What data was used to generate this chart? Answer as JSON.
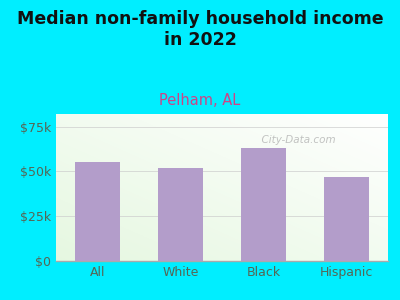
{
  "title": "Median non-family household income\nin 2022",
  "subtitle": "Pelham, AL",
  "categories": [
    "All",
    "White",
    "Black",
    "Hispanic"
  ],
  "values": [
    55000,
    52000,
    63000,
    47000
  ],
  "bar_color": "#b39dca",
  "title_fontsize": 12.5,
  "subtitle_fontsize": 10.5,
  "subtitle_color": "#cc4488",
  "title_color": "#111111",
  "tick_color": "#556655",
  "yticks": [
    0,
    25000,
    50000,
    75000
  ],
  "ytick_labels": [
    "$0",
    "$25k",
    "$50k",
    "$75k"
  ],
  "ylim": [
    0,
    82000
  ],
  "bg_outer": "#00eeff",
  "bg_plot_topleft": "#e8f5e0",
  "bg_plot_topright": "#f8f8f8",
  "bg_plot_bottomleft": "#d8f0d0",
  "bg_plot_bottomright": "#f0f8f0",
  "watermark": "  City-Data.com",
  "watermark_color": "#aaaaaa"
}
